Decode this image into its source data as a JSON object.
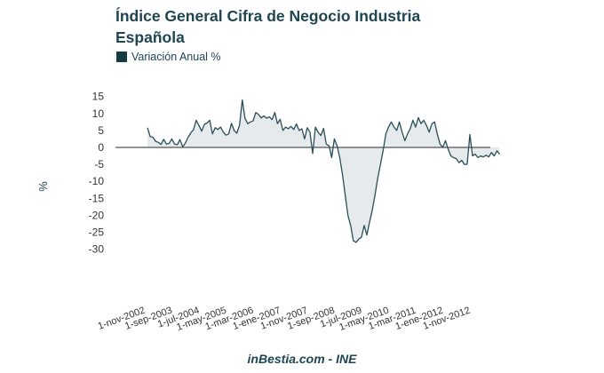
{
  "chart_data": {
    "type": "area",
    "title": "Índice General Cifra de Negocio Industria Española",
    "legend": [
      {
        "label": "Variación Anual %",
        "color": "#163b45"
      }
    ],
    "legend_position": "top-left",
    "xlabel": "",
    "ylabel": "%",
    "ylim": [
      -30,
      15
    ],
    "yticks": [
      15,
      10,
      5,
      0,
      -5,
      -10,
      -15,
      -20,
      -25,
      -30
    ],
    "xtick_labels": [
      "1-nov-2002",
      "1-sep-2003",
      "1-jul-2004",
      "1-may-2005",
      "1-mar-2006",
      "1-ene-2007",
      "1-nov-2007",
      "1-sep-2008",
      "1-jul-2009",
      "1-may-2010",
      "1-mar-2011",
      "1-ene-2012",
      "1-nov-2012"
    ],
    "xtick_month_index": [
      0,
      10,
      20,
      30,
      40,
      50,
      60,
      70,
      80,
      90,
      100,
      110,
      120
    ],
    "x_start": "nov-2002",
    "x_frequency": "monthly",
    "grid": false,
    "line_color": "#2b4f5a",
    "fill_color": "#e6eaec",
    "zero_line_color": "#555555",
    "series": [
      {
        "name": "Variación Anual %",
        "values": [
          5.8,
          3.2,
          3.0,
          1.8,
          1.5,
          0.9,
          2.4,
          1.0,
          1.2,
          2.5,
          1.0,
          0.8,
          2.3,
          0.2,
          1.3,
          3.0,
          4.3,
          5.2,
          8.0,
          6.5,
          4.8,
          6.8,
          7.2,
          8.0,
          4.0,
          5.8,
          5.3,
          6.0,
          4.5,
          3.6,
          4.0,
          7.1,
          5.0,
          4.2,
          6.6,
          14.0,
          8.6,
          7.0,
          7.5,
          7.8,
          10.3,
          9.7,
          8.7,
          9.3,
          8.6,
          9.0,
          8.2,
          10.3,
          7.0,
          8.3,
          5.0,
          6.0,
          5.5,
          6.2,
          5.3,
          6.9,
          5.0,
          5.5,
          2.5,
          5.8,
          4.5,
          -1.8,
          6.0,
          4.5,
          3.5,
          5.6,
          1.0,
          0.5,
          -3.0,
          2.5,
          0.5,
          -3.0,
          -8.0,
          -14.0,
          -20.0,
          -23.0,
          -27.5,
          -28.0,
          -27.0,
          -26.5,
          -23.0,
          -25.8,
          -22.0,
          -18.5,
          -14.0,
          -9.0,
          -5.0,
          -1.0,
          4.0,
          6.0,
          7.5,
          6.0,
          5.0,
          7.5,
          4.5,
          2.0,
          4.0,
          5.5,
          8.0,
          6.0,
          8.8,
          7.0,
          8.0,
          6.5,
          4.5,
          7.0,
          7.5,
          4.0,
          1.0,
          0.0,
          2.0,
          -0.5,
          -2.5,
          -3.0,
          -3.3,
          -4.5,
          -3.8,
          -5.0,
          -5.0,
          3.8,
          -2.5,
          -2.0,
          -3.0,
          -2.5,
          -2.8,
          -2.3,
          -2.8,
          -1.5,
          -2.5,
          -1.0,
          -2.0
        ]
      }
    ]
  },
  "footer": {
    "source": "inBestia.com - INE"
  }
}
